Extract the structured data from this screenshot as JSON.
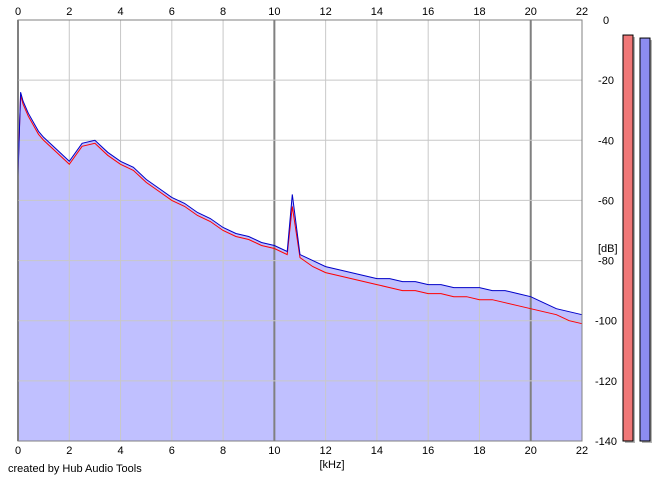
{
  "credit": "created by Hub Audio Tools",
  "colors": {
    "fill": "#c0c0ff",
    "grid": "#c8c8c8",
    "grid_major": "#808080",
    "series_left": "#ff0000",
    "series_right": "#0000c8",
    "meter_left": "#f07878",
    "meter_right": "#8c8cf0"
  },
  "chart_data": {
    "type": "line",
    "xlabel": "[kHz]",
    "ylabel": "[dB]",
    "xlim": [
      0,
      22
    ],
    "ylim": [
      -140,
      0
    ],
    "x_ticks": [
      "0",
      "2",
      "4",
      "6",
      "8",
      "10",
      "12",
      "14",
      "16",
      "18",
      "20",
      "22"
    ],
    "y_ticks": [
      "0",
      "-20",
      "-40",
      "-60",
      "-80",
      "-100",
      "-120",
      "-140"
    ],
    "x_major_ticks": [
      0,
      10,
      20
    ],
    "grid": true,
    "legend": "none",
    "series": [
      {
        "channel": "left",
        "color": "#ff0000",
        "x": [
          0,
          0.1,
          0.2,
          0.4,
          0.6,
          0.8,
          1.0,
          1.5,
          2.0,
          2.5,
          3.0,
          3.5,
          4.0,
          4.5,
          5.0,
          5.5,
          6.0,
          6.5,
          7.0,
          7.5,
          8.0,
          8.5,
          9.0,
          9.5,
          10.0,
          10.5,
          10.7,
          11.0,
          11.5,
          12.0,
          12.5,
          13.0,
          13.5,
          14.0,
          14.5,
          15.0,
          15.5,
          16.0,
          16.5,
          17.0,
          17.5,
          18.0,
          18.5,
          19.0,
          19.5,
          20.0,
          20.5,
          21.0,
          21.5,
          22.0
        ],
        "values": [
          -50,
          -25,
          -28,
          -32,
          -35,
          -38,
          -40,
          -44,
          -48,
          -42,
          -41,
          -45,
          -48,
          -50,
          -54,
          -57,
          -60,
          -62,
          -65,
          -67,
          -70,
          -72,
          -73,
          -75,
          -76,
          -78,
          -62,
          -79,
          -82,
          -84,
          -85,
          -86,
          -87,
          -88,
          -89,
          -90,
          -90,
          -91,
          -91,
          -92,
          -92,
          -93,
          -93,
          -94,
          -95,
          -96,
          -97,
          -98,
          -100,
          -101
        ]
      },
      {
        "channel": "right",
        "color": "#0000c8",
        "x": [
          0,
          0.1,
          0.2,
          0.4,
          0.6,
          0.8,
          1.0,
          1.5,
          2.0,
          2.5,
          3.0,
          3.5,
          4.0,
          4.5,
          5.0,
          5.5,
          6.0,
          6.5,
          7.0,
          7.5,
          8.0,
          8.5,
          9.0,
          9.5,
          10.0,
          10.5,
          10.7,
          11.0,
          11.5,
          12.0,
          12.5,
          13.0,
          13.5,
          14.0,
          14.5,
          15.0,
          15.5,
          16.0,
          16.5,
          17.0,
          17.5,
          18.0,
          18.5,
          19.0,
          19.5,
          20.0,
          20.5,
          21.0,
          21.5,
          22.0
        ],
        "values": [
          -52,
          -24,
          -27,
          -31,
          -34,
          -37,
          -39,
          -43,
          -47,
          -41,
          -40,
          -44,
          -47,
          -49,
          -53,
          -56,
          -59,
          -61,
          -64,
          -66,
          -69,
          -71,
          -72,
          -74,
          -75,
          -77,
          -58,
          -78,
          -80,
          -82,
          -83,
          -84,
          -85,
          -86,
          -86,
          -87,
          -87,
          -88,
          -88,
          -89,
          -89,
          -89,
          -90,
          -90,
          -91,
          -92,
          -94,
          -96,
          -97,
          -98
        ]
      }
    ],
    "level_meters": [
      {
        "channel": "left",
        "level_db": -5
      },
      {
        "channel": "right",
        "level_db": -6
      }
    ]
  }
}
